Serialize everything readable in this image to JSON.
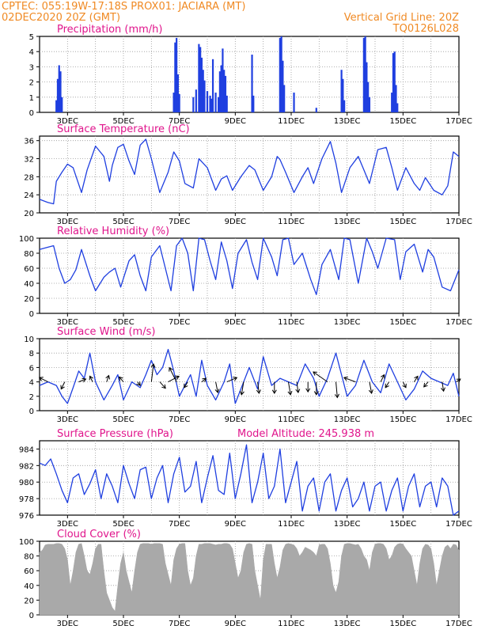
{
  "header": {
    "line1": "CPTEC:    055:19W-17:18S   PROX01: JACIARA (MT)",
    "line2": "02DEC2020 20Z (GMT)",
    "grid_line": "Vertical Grid Line: 20Z",
    "code": "TQ0126L028"
  },
  "colors": {
    "header": "#f08a24",
    "title": "#e0158c",
    "series": "#1f3fe0",
    "cloud": "#a9a9a9"
  },
  "x_ticks": [
    "3DEC",
    "5DEC",
    "7DEC",
    "9DEC",
    "11DEC",
    "13DEC",
    "15DEC",
    "17DEC"
  ],
  "chart_data": [
    {
      "type": "bar",
      "title": "Precipitation (mm/h)",
      "ylim": [
        0,
        5
      ],
      "yticks": [
        0,
        1,
        2,
        3,
        4,
        5
      ],
      "grid": true,
      "x": [
        2.6,
        2.65,
        2.7,
        2.75,
        2.8,
        6.8,
        6.85,
        6.9,
        6.95,
        7.0,
        7.5,
        7.6,
        7.7,
        7.75,
        7.8,
        7.85,
        7.9,
        8.0,
        8.1,
        8.15,
        8.2,
        8.3,
        8.4,
        8.45,
        8.5,
        8.55,
        8.6,
        8.65,
        8.7,
        9.6,
        9.65,
        10.6,
        10.65,
        10.7,
        10.75,
        11.1,
        11.9,
        12.8,
        12.85,
        12.9,
        13.6,
        13.65,
        13.7,
        13.75,
        13.8,
        14.6,
        14.65,
        14.7,
        14.75,
        14.8
      ],
      "values": [
        0.8,
        2.2,
        3.1,
        2.7,
        1.0,
        1.3,
        4.6,
        4.9,
        2.5,
        1.2,
        1.0,
        1.5,
        4.5,
        4.3,
        3.6,
        2.8,
        2.1,
        1.4,
        1.1,
        0.9,
        3.5,
        1.3,
        1.0,
        2.7,
        3.1,
        4.2,
        2.8,
        2.4,
        1.1,
        3.8,
        1.1,
        4.9,
        5.0,
        3.4,
        1.8,
        1.3,
        0.3,
        2.8,
        2.2,
        0.8,
        4.9,
        5.0,
        3.3,
        2.0,
        1.0,
        1.3,
        3.9,
        4.0,
        1.8,
        0.6
      ]
    },
    {
      "type": "line",
      "title": "Surface Temperature (nC)",
      "ylim": [
        20,
        37
      ],
      "yticks": [
        20,
        24,
        28,
        32,
        36
      ],
      "grid": true,
      "x": [
        2.0,
        2.3,
        2.5,
        2.6,
        2.8,
        3.0,
        3.2,
        3.5,
        3.7,
        4.0,
        4.3,
        4.5,
        4.6,
        4.8,
        5.0,
        5.2,
        5.4,
        5.6,
        5.8,
        6.0,
        6.3,
        6.6,
        6.8,
        7.0,
        7.2,
        7.5,
        7.7,
        8.0,
        8.3,
        8.5,
        8.7,
        8.9,
        9.2,
        9.5,
        9.7,
        10.0,
        10.3,
        10.5,
        10.6,
        10.8,
        11.1,
        11.4,
        11.6,
        11.8,
        12.1,
        12.4,
        12.6,
        12.8,
        13.1,
        13.4,
        13.6,
        13.8,
        14.1,
        14.4,
        14.6,
        14.8,
        15.1,
        15.4,
        15.6,
        15.8,
        16.1,
        16.4,
        16.6,
        16.8,
        17.0
      ],
      "values": [
        23.0,
        22.3,
        22.0,
        27.0,
        29.0,
        30.8,
        30.0,
        24.5,
        29.5,
        34.8,
        32.5,
        27.0,
        30.5,
        34.5,
        35.2,
        31.5,
        28.5,
        35.0,
        36.3,
        32.0,
        24.5,
        29.0,
        33.5,
        31.5,
        26.5,
        25.5,
        32.0,
        30.0,
        25.0,
        27.5,
        28.2,
        25.0,
        28.0,
        30.5,
        29.5,
        25.0,
        28.0,
        32.5,
        31.8,
        29.0,
        24.5,
        28.0,
        30.0,
        26.5,
        32.0,
        35.8,
        31.0,
        24.5,
        30.0,
        32.5,
        29.5,
        26.5,
        34.0,
        34.5,
        30.0,
        25.0,
        30.0,
        26.5,
        25.0,
        27.8,
        25.0,
        24.0,
        26.0,
        33.5,
        32.5
      ]
    },
    {
      "type": "line",
      "title": "Relative Humidity (%)",
      "ylim": [
        0,
        100
      ],
      "yticks": [
        0,
        20,
        40,
        60,
        80,
        100
      ],
      "grid": true,
      "x": [
        2.0,
        2.3,
        2.5,
        2.7,
        2.9,
        3.1,
        3.3,
        3.5,
        3.8,
        4.0,
        4.3,
        4.5,
        4.7,
        4.9,
        5.2,
        5.4,
        5.6,
        5.8,
        6.0,
        6.3,
        6.5,
        6.7,
        6.9,
        7.1,
        7.3,
        7.5,
        7.7,
        7.9,
        8.1,
        8.3,
        8.5,
        8.7,
        8.9,
        9.1,
        9.4,
        9.6,
        9.8,
        10.0,
        10.3,
        10.5,
        10.7,
        10.9,
        11.1,
        11.4,
        11.7,
        11.9,
        12.1,
        12.4,
        12.7,
        12.9,
        13.1,
        13.4,
        13.7,
        13.9,
        14.1,
        14.4,
        14.7,
        14.9,
        15.1,
        15.4,
        15.7,
        15.9,
        16.1,
        16.4,
        16.7,
        17.0
      ],
      "values": [
        85,
        88,
        90,
        60,
        40,
        45,
        58,
        85,
        50,
        30,
        48,
        55,
        60,
        35,
        70,
        78,
        50,
        30,
        75,
        90,
        60,
        30,
        90,
        100,
        80,
        30,
        100,
        98,
        70,
        45,
        95,
        70,
        33,
        80,
        98,
        68,
        45,
        100,
        75,
        50,
        98,
        100,
        65,
        80,
        45,
        25,
        65,
        85,
        45,
        100,
        98,
        40,
        100,
        82,
        60,
        100,
        98,
        45,
        82,
        92,
        55,
        85,
        75,
        35,
        30,
        58
      ]
    },
    {
      "type": "line",
      "title": "Surface Wind (m/s)",
      "ylim": [
        0,
        10
      ],
      "yticks": [
        0,
        2,
        4,
        6,
        8,
        10
      ],
      "grid": true,
      "x": [
        2.0,
        2.3,
        2.6,
        2.8,
        3.0,
        3.2,
        3.4,
        3.6,
        3.8,
        4.0,
        4.3,
        4.6,
        4.8,
        5.0,
        5.3,
        5.6,
        5.8,
        6.0,
        6.2,
        6.4,
        6.6,
        6.8,
        7.0,
        7.2,
        7.4,
        7.6,
        7.8,
        8.0,
        8.3,
        8.6,
        8.8,
        9.0,
        9.2,
        9.5,
        9.8,
        10.0,
        10.3,
        10.6,
        10.9,
        11.2,
        11.5,
        11.8,
        12.0,
        12.3,
        12.6,
        12.8,
        13.0,
        13.3,
        13.6,
        13.9,
        14.2,
        14.5,
        14.8,
        15.1,
        15.4,
        15.7,
        16.0,
        16.3,
        16.6,
        16.8,
        17.0
      ],
      "values": [
        3.5,
        4.0,
        3.5,
        2.0,
        1.0,
        3.2,
        5.5,
        4.5,
        8.0,
        4.0,
        1.5,
        3.5,
        5.0,
        1.5,
        4.0,
        3.2,
        5.0,
        7.0,
        5.0,
        6.0,
        8.5,
        5.5,
        2.0,
        3.5,
        5.0,
        2.0,
        7.0,
        3.5,
        1.5,
        4.0,
        6.5,
        1.0,
        3.0,
        6.0,
        3.0,
        7.5,
        3.5,
        4.5,
        4.0,
        3.5,
        6.5,
        4.5,
        2.0,
        4.5,
        8.0,
        5.0,
        2.0,
        3.5,
        7.0,
        4.0,
        2.5,
        6.5,
        4.0,
        1.5,
        3.0,
        5.5,
        4.5,
        4.0,
        3.5,
        5.2,
        2.0
      ],
      "vectors": [
        {
          "x": 2.3,
          "u": -1.2,
          "v": 0.6
        },
        {
          "x": 2.9,
          "u": -0.5,
          "v": -1.0
        },
        {
          "x": 3.4,
          "u": 1.0,
          "v": 0.4
        },
        {
          "x": 3.9,
          "u": -0.4,
          "v": 0.8
        },
        {
          "x": 4.4,
          "u": 0.3,
          "v": 0.9
        },
        {
          "x": 5.0,
          "u": -0.6,
          "v": 0.7
        },
        {
          "x": 5.5,
          "u": 0.4,
          "v": -0.5
        },
        {
          "x": 6.0,
          "u": 0.3,
          "v": 2.5
        },
        {
          "x": 6.3,
          "u": 0.8,
          "v": -0.9
        },
        {
          "x": 6.6,
          "u": 1.5,
          "v": 0.8
        },
        {
          "x": 6.9,
          "u": -1.0,
          "v": 2.0
        },
        {
          "x": 7.3,
          "u": -0.5,
          "v": -0.8
        },
        {
          "x": 7.8,
          "u": 0.6,
          "v": 0.5
        },
        {
          "x": 8.3,
          "u": 0.3,
          "v": -1.5
        },
        {
          "x": 8.7,
          "u": 1.4,
          "v": 0.6
        },
        {
          "x": 9.3,
          "u": -0.3,
          "v": -1.8
        },
        {
          "x": 9.8,
          "u": 0.2,
          "v": -1.6
        },
        {
          "x": 10.4,
          "u": 0.0,
          "v": -1.6
        },
        {
          "x": 10.9,
          "u": 0.3,
          "v": -1.8
        },
        {
          "x": 11.2,
          "u": 0.2,
          "v": -1.5
        },
        {
          "x": 11.6,
          "u": 0.0,
          "v": -1.4
        },
        {
          "x": 11.9,
          "u": 0.0,
          "v": -1.8
        },
        {
          "x": 12.3,
          "u": -2.0,
          "v": 1.4
        },
        {
          "x": 12.6,
          "u": 0.2,
          "v": -2.2
        },
        {
          "x": 13.3,
          "u": -1.6,
          "v": 0.6
        },
        {
          "x": 13.8,
          "u": 0.3,
          "v": -1.6
        },
        {
          "x": 14.2,
          "u": 0.5,
          "v": 1.0
        },
        {
          "x": 14.5,
          "u": -0.5,
          "v": -0.8
        },
        {
          "x": 15.0,
          "u": 0.4,
          "v": -0.8
        },
        {
          "x": 15.4,
          "u": 0.5,
          "v": 0.8
        },
        {
          "x": 15.9,
          "u": -0.6,
          "v": -0.7
        },
        {
          "x": 16.4,
          "u": 0.2,
          "v": -1.3
        },
        {
          "x": 16.9,
          "u": 0.6,
          "v": 0.4
        }
      ]
    },
    {
      "type": "line",
      "title": "Surface Pressure (hPa)",
      "annotation": "Model Altitude: 245.938  m",
      "ylim": [
        976,
        985
      ],
      "yticks": [
        976,
        978,
        980,
        982,
        984
      ],
      "grid": true,
      "x": [
        2.0,
        2.2,
        2.4,
        2.6,
        2.8,
        3.0,
        3.2,
        3.4,
        3.6,
        3.8,
        4.0,
        4.2,
        4.4,
        4.6,
        4.8,
        5.0,
        5.2,
        5.4,
        5.6,
        5.8,
        6.0,
        6.2,
        6.4,
        6.6,
        6.8,
        7.0,
        7.2,
        7.4,
        7.6,
        7.8,
        8.0,
        8.2,
        8.4,
        8.6,
        8.8,
        9.0,
        9.2,
        9.4,
        9.6,
        9.8,
        10.0,
        10.2,
        10.4,
        10.6,
        10.8,
        11.0,
        11.2,
        11.4,
        11.6,
        11.8,
        12.0,
        12.2,
        12.4,
        12.6,
        12.8,
        13.0,
        13.2,
        13.4,
        13.6,
        13.8,
        14.0,
        14.2,
        14.4,
        14.6,
        14.8,
        15.0,
        15.2,
        15.4,
        15.6,
        15.8,
        16.0,
        16.2,
        16.4,
        16.6,
        16.8,
        17.0
      ],
      "values": [
        982.3,
        982.0,
        982.8,
        981.0,
        979.0,
        977.5,
        980.5,
        981.0,
        978.5,
        979.8,
        981.5,
        978.0,
        981.0,
        979.5,
        977.5,
        982.0,
        979.8,
        978.0,
        981.5,
        981.8,
        978.0,
        980.5,
        982.0,
        977.5,
        981.0,
        983.0,
        978.8,
        979.5,
        982.5,
        977.5,
        980.5,
        983.2,
        979.0,
        978.5,
        983.5,
        978.0,
        981.0,
        984.5,
        977.5,
        980.0,
        983.5,
        978.0,
        979.5,
        984.0,
        977.5,
        980.0,
        982.5,
        976.5,
        979.5,
        980.5,
        976.5,
        980.0,
        981.0,
        976.5,
        979.0,
        980.5,
        977.0,
        978.0,
        980.0,
        976.5,
        979.5,
        980.0,
        976.5,
        979.0,
        980.5,
        976.5,
        979.5,
        981.0,
        977.0,
        979.5,
        980.0,
        977.0,
        980.5,
        979.5,
        976.0,
        976.5
      ]
    },
    {
      "type": "area",
      "title": "Cloud Cover (%)",
      "ylim": [
        0,
        100
      ],
      "yticks": [
        0,
        20,
        40,
        60,
        80,
        100
      ],
      "grid": true,
      "x": [
        2.0,
        2.1,
        2.2,
        2.3,
        2.4,
        2.5,
        2.6,
        2.7,
        2.8,
        2.9,
        3.0,
        3.1,
        3.2,
        3.3,
        3.4,
        3.5,
        3.6,
        3.7,
        3.8,
        3.9,
        4.0,
        4.1,
        4.2,
        4.3,
        4.4,
        4.5,
        4.6,
        4.7,
        4.8,
        4.9,
        5.0,
        5.1,
        5.2,
        5.3,
        5.4,
        5.5,
        5.6,
        5.7,
        5.8,
        5.9,
        6.0,
        6.1,
        6.2,
        6.3,
        6.4,
        6.5,
        6.6,
        6.7,
        6.8,
        6.9,
        7.0,
        7.1,
        7.2,
        7.3,
        7.4,
        7.5,
        7.6,
        7.7,
        7.8,
        7.9,
        8.0,
        8.1,
        8.2,
        8.3,
        8.4,
        8.5,
        8.6,
        8.7,
        8.8,
        8.9,
        9.0,
        9.1,
        9.2,
        9.3,
        9.4,
        9.5,
        9.6,
        9.7,
        9.8,
        9.9,
        10.0,
        10.1,
        10.2,
        10.3,
        10.4,
        10.5,
        10.6,
        10.7,
        10.8,
        10.9,
        11.0,
        11.1,
        11.2,
        11.3,
        11.4,
        11.5,
        11.6,
        11.7,
        11.8,
        11.9,
        12.0,
        12.1,
        12.2,
        12.3,
        12.4,
        12.5,
        12.6,
        12.7,
        12.8,
        12.9,
        13.0,
        13.1,
        13.2,
        13.3,
        13.4,
        13.5,
        13.6,
        13.7,
        13.8,
        13.9,
        14.0,
        14.1,
        14.2,
        14.3,
        14.4,
        14.5,
        14.6,
        14.7,
        14.8,
        14.9,
        15.0,
        15.1,
        15.2,
        15.3,
        15.4,
        15.5,
        15.6,
        15.7,
        15.8,
        15.9,
        16.0,
        16.1,
        16.2,
        16.3,
        16.4,
        16.5,
        16.6,
        16.7,
        16.8,
        16.9,
        17.0
      ],
      "values": [
        85,
        88,
        95,
        96,
        96,
        96,
        97,
        97,
        96,
        90,
        75,
        40,
        60,
        85,
        96,
        97,
        80,
        60,
        55,
        70,
        90,
        96,
        96,
        60,
        30,
        20,
        10,
        5,
        40,
        70,
        85,
        60,
        45,
        30,
        60,
        85,
        96,
        97,
        97,
        97,
        96,
        97,
        97,
        97,
        96,
        70,
        55,
        40,
        75,
        90,
        96,
        97,
        97,
        60,
        40,
        50,
        80,
        96,
        96,
        97,
        97,
        97,
        96,
        95,
        96,
        96,
        97,
        97,
        96,
        90,
        70,
        50,
        60,
        85,
        96,
        97,
        96,
        60,
        40,
        20,
        75,
        96,
        96,
        96,
        70,
        50,
        65,
        88,
        96,
        97,
        96,
        95,
        90,
        80,
        85,
        92,
        90,
        88,
        85,
        80,
        95,
        96,
        96,
        90,
        70,
        40,
        30,
        45,
        80,
        96,
        97,
        97,
        96,
        95,
        96,
        90,
        80,
        75,
        60,
        85,
        96,
        97,
        97,
        96,
        90,
        75,
        80,
        92,
        96,
        97,
        96,
        90,
        85,
        80,
        60,
        40,
        70,
        90,
        96,
        95,
        90,
        70,
        40,
        60,
        80,
        92,
        95,
        90,
        96,
        95,
        88
      ]
    }
  ]
}
